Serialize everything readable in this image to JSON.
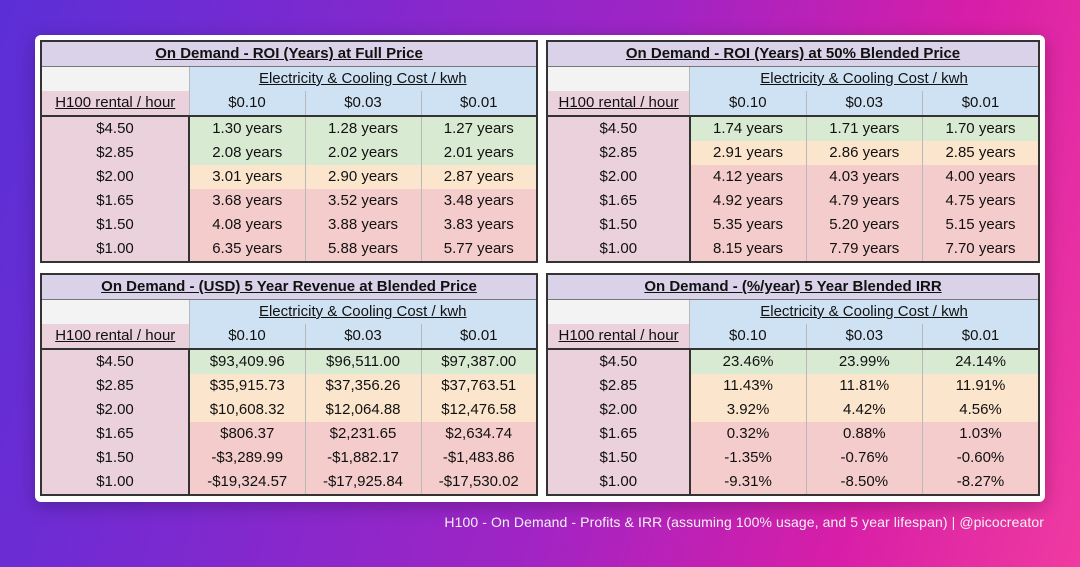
{
  "tables": [
    {
      "title": "On Demand - ROI (Years) at Full Price",
      "elec_header": "Electricity & Cooling Cost / kwh",
      "row_header": "H100 rental / hour",
      "cost_columns": [
        "$0.10",
        "$0.03",
        "$0.01"
      ],
      "rows": [
        {
          "label": "$4.50",
          "cells": [
            "1.30 years",
            "1.28 years",
            "1.27 years"
          ],
          "colors": [
            "green",
            "green",
            "green"
          ]
        },
        {
          "label": "$2.85",
          "cells": [
            "2.08 years",
            "2.02 years",
            "2.01 years"
          ],
          "colors": [
            "green",
            "green",
            "green"
          ]
        },
        {
          "label": "$2.00",
          "cells": [
            "3.01 years",
            "2.90 years",
            "2.87 years"
          ],
          "colors": [
            "orange",
            "orange",
            "orange"
          ]
        },
        {
          "label": "$1.65",
          "cells": [
            "3.68 years",
            "3.52 years",
            "3.48 years"
          ],
          "colors": [
            "red",
            "red",
            "red"
          ]
        },
        {
          "label": "$1.50",
          "cells": [
            "4.08 years",
            "3.88 years",
            "3.83 years"
          ],
          "colors": [
            "red",
            "red",
            "red"
          ]
        },
        {
          "label": "$1.00",
          "cells": [
            "6.35 years",
            "5.88 years",
            "5.77 years"
          ],
          "colors": [
            "red",
            "red",
            "red"
          ]
        }
      ]
    },
    {
      "title": "On Demand - ROI (Years) at 50% Blended Price",
      "elec_header": "Electricity & Cooling Cost / kwh",
      "row_header": "H100 rental / hour",
      "cost_columns": [
        "$0.10",
        "$0.03",
        "$0.01"
      ],
      "rows": [
        {
          "label": "$4.50",
          "cells": [
            "1.74 years",
            "1.71 years",
            "1.70 years"
          ],
          "colors": [
            "green",
            "green",
            "green"
          ]
        },
        {
          "label": "$2.85",
          "cells": [
            "2.91 years",
            "2.86 years",
            "2.85 years"
          ],
          "colors": [
            "orange",
            "orange",
            "orange"
          ]
        },
        {
          "label": "$2.00",
          "cells": [
            "4.12 years",
            "4.03 years",
            "4.00 years"
          ],
          "colors": [
            "red",
            "red",
            "red"
          ]
        },
        {
          "label": "$1.65",
          "cells": [
            "4.92 years",
            "4.79 years",
            "4.75 years"
          ],
          "colors": [
            "red",
            "red",
            "red"
          ]
        },
        {
          "label": "$1.50",
          "cells": [
            "5.35 years",
            "5.20 years",
            "5.15 years"
          ],
          "colors": [
            "red",
            "red",
            "red"
          ]
        },
        {
          "label": "$1.00",
          "cells": [
            "8.15 years",
            "7.79 years",
            "7.70 years"
          ],
          "colors": [
            "red",
            "red",
            "red"
          ]
        }
      ]
    },
    {
      "title": "On Demand - (USD) 5 Year Revenue at Blended Price",
      "elec_header": "Electricity & Cooling Cost / kwh",
      "row_header": "H100 rental / hour",
      "cost_columns": [
        "$0.10",
        "$0.03",
        "$0.01"
      ],
      "rows": [
        {
          "label": "$4.50",
          "cells": [
            "$93,409.96",
            "$96,511.00",
            "$97,387.00"
          ],
          "colors": [
            "green",
            "green",
            "green"
          ]
        },
        {
          "label": "$2.85",
          "cells": [
            "$35,915.73",
            "$37,356.26",
            "$37,763.51"
          ],
          "colors": [
            "orange",
            "orange",
            "orange"
          ]
        },
        {
          "label": "$2.00",
          "cells": [
            "$10,608.32",
            "$12,064.88",
            "$12,476.58"
          ],
          "colors": [
            "orange",
            "orange",
            "orange"
          ]
        },
        {
          "label": "$1.65",
          "cells": [
            "$806.37",
            "$2,231.65",
            "$2,634.74"
          ],
          "colors": [
            "red",
            "red",
            "red"
          ]
        },
        {
          "label": "$1.50",
          "cells": [
            "-$3,289.99",
            "-$1,882.17",
            "-$1,483.86"
          ],
          "colors": [
            "red",
            "red",
            "red"
          ]
        },
        {
          "label": "$1.00",
          "cells": [
            "-$19,324.57",
            "-$17,925.84",
            "-$17,530.02"
          ],
          "colors": [
            "red",
            "red",
            "red"
          ]
        }
      ]
    },
    {
      "title": "On Demand - (%/year) 5 Year Blended IRR",
      "elec_header": "Electricity & Cooling Cost / kwh",
      "row_header": "H100 rental / hour",
      "cost_columns": [
        "$0.10",
        "$0.03",
        "$0.01"
      ],
      "rows": [
        {
          "label": "$4.50",
          "cells": [
            "23.46%",
            "23.99%",
            "24.14%"
          ],
          "colors": [
            "green",
            "green",
            "green"
          ]
        },
        {
          "label": "$2.85",
          "cells": [
            "11.43%",
            "11.81%",
            "11.91%"
          ],
          "colors": [
            "orange",
            "orange",
            "orange"
          ]
        },
        {
          "label": "$2.00",
          "cells": [
            "3.92%",
            "4.42%",
            "4.56%"
          ],
          "colors": [
            "orange",
            "orange",
            "orange"
          ]
        },
        {
          "label": "$1.65",
          "cells": [
            "0.32%",
            "0.88%",
            "1.03%"
          ],
          "colors": [
            "red",
            "red",
            "red"
          ]
        },
        {
          "label": "$1.50",
          "cells": [
            "-1.35%",
            "-0.76%",
            "-0.60%"
          ],
          "colors": [
            "red",
            "red",
            "red"
          ]
        },
        {
          "label": "$1.00",
          "cells": [
            "-9.31%",
            "-8.50%",
            "-8.27%"
          ],
          "colors": [
            "red",
            "red",
            "red"
          ]
        }
      ]
    }
  ],
  "caption": "H100 - On Demand - Profits & IRR (assuming 100% usage, and 5 year lifespan) | @picocreator",
  "colors": {
    "title_bg": "#d9d2e9",
    "header_blue": "#cfe2f3",
    "row_label_pink": "#ead1dc",
    "green": "#d9ead3",
    "orange": "#fce5cd",
    "red": "#f4cccc"
  }
}
